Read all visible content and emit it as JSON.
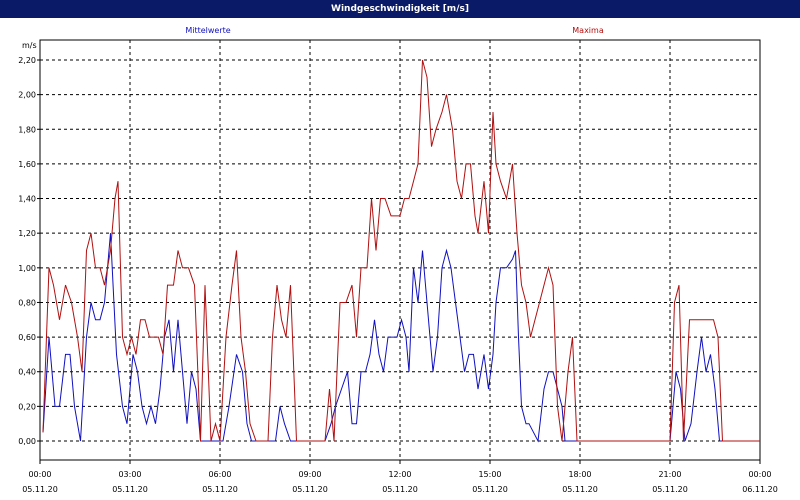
{
  "window_title": "Windgeschwindigkeit [m/s]",
  "colors": {
    "titlebar": "#0a1a66",
    "avg": "#1010c0",
    "max": "#b01010",
    "grid": "#000000"
  },
  "chart_data": {
    "type": "line",
    "title": "Windgeschwindigkeit [m/s]",
    "ylabel": "m/s",
    "ylim": [
      0,
      2.3
    ],
    "xlim_hours": [
      0,
      24
    ],
    "grid": true,
    "y_ticks": [
      "0,00",
      "0,20",
      "0,40",
      "0,60",
      "0,80",
      "1,00",
      "1,20",
      "1,40",
      "1,60",
      "1,80",
      "2,00",
      "2,20"
    ],
    "x_ticks": [
      {
        "time": "00:00",
        "date": "05.11.20"
      },
      {
        "time": "03:00",
        "date": "05.11.20"
      },
      {
        "time": "06:00",
        "date": "05.11.20"
      },
      {
        "time": "09:00",
        "date": "05.11.20"
      },
      {
        "time": "12:00",
        "date": "05.11.20"
      },
      {
        "time": "15:00",
        "date": "05.11.20"
      },
      {
        "time": "18:00",
        "date": "05.11.20"
      },
      {
        "time": "21:00",
        "date": "05.11.20"
      },
      {
        "time": "00:00",
        "date": "06.11.20"
      }
    ],
    "series": [
      {
        "name": "Mittelwerte",
        "color": "#1010c0",
        "points": [
          [
            0.1,
            0.05
          ],
          [
            0.3,
            0.6
          ],
          [
            0.5,
            0.2
          ],
          [
            0.65,
            0.2
          ],
          [
            0.85,
            0.5
          ],
          [
            1.0,
            0.5
          ],
          [
            1.15,
            0.2
          ],
          [
            1.35,
            0.0
          ],
          [
            1.55,
            0.6
          ],
          [
            1.7,
            0.8
          ],
          [
            1.85,
            0.7
          ],
          [
            2.0,
            0.7
          ],
          [
            2.15,
            0.8
          ],
          [
            2.35,
            1.2
          ],
          [
            2.55,
            0.5
          ],
          [
            2.75,
            0.2
          ],
          [
            2.9,
            0.1
          ],
          [
            3.1,
            0.5
          ],
          [
            3.25,
            0.4
          ],
          [
            3.4,
            0.2
          ],
          [
            3.55,
            0.1
          ],
          [
            3.7,
            0.2
          ],
          [
            3.85,
            0.1
          ],
          [
            4.0,
            0.3
          ],
          [
            4.15,
            0.6
          ],
          [
            4.3,
            0.7
          ],
          [
            4.45,
            0.4
          ],
          [
            4.6,
            0.7
          ],
          [
            4.75,
            0.4
          ],
          [
            4.9,
            0.1
          ],
          [
            5.05,
            0.4
          ],
          [
            5.2,
            0.3
          ],
          [
            5.35,
            0.0
          ],
          [
            5.6,
            0.0
          ],
          [
            5.9,
            0.0
          ],
          [
            6.1,
            0.0
          ],
          [
            6.3,
            0.2
          ],
          [
            6.55,
            0.5
          ],
          [
            6.75,
            0.4
          ],
          [
            6.9,
            0.1
          ],
          [
            7.05,
            0.0
          ],
          [
            7.3,
            0.0
          ],
          [
            7.5,
            0.0
          ],
          [
            7.7,
            0.0
          ],
          [
            7.85,
            0.0
          ],
          [
            8.0,
            0.2
          ],
          [
            8.15,
            0.1
          ],
          [
            8.35,
            0.0
          ],
          [
            8.6,
            0.0
          ],
          [
            8.9,
            0.0
          ],
          [
            9.1,
            0.0
          ],
          [
            9.3,
            0.0
          ],
          [
            9.5,
            0.0
          ],
          [
            9.7,
            0.1
          ],
          [
            9.85,
            0.2
          ],
          [
            10.05,
            0.3
          ],
          [
            10.25,
            0.4
          ],
          [
            10.4,
            0.1
          ],
          [
            10.55,
            0.1
          ],
          [
            10.7,
            0.4
          ],
          [
            10.85,
            0.4
          ],
          [
            11.0,
            0.5
          ],
          [
            11.15,
            0.7
          ],
          [
            11.3,
            0.5
          ],
          [
            11.45,
            0.4
          ],
          [
            11.6,
            0.6
          ],
          [
            11.75,
            0.6
          ],
          [
            11.9,
            0.6
          ],
          [
            12.05,
            0.7
          ],
          [
            12.2,
            0.6
          ],
          [
            12.3,
            0.4
          ],
          [
            12.45,
            1.0
          ],
          [
            12.6,
            0.8
          ],
          [
            12.75,
            1.1
          ],
          [
            12.9,
            0.8
          ],
          [
            13.1,
            0.4
          ],
          [
            13.25,
            0.6
          ],
          [
            13.4,
            1.0
          ],
          [
            13.55,
            1.1
          ],
          [
            13.7,
            1.0
          ],
          [
            13.85,
            0.8
          ],
          [
            14.0,
            0.6
          ],
          [
            14.15,
            0.4
          ],
          [
            14.3,
            0.5
          ],
          [
            14.45,
            0.5
          ],
          [
            14.6,
            0.3
          ],
          [
            14.8,
            0.5
          ],
          [
            14.95,
            0.3
          ],
          [
            15.1,
            0.5
          ],
          [
            15.2,
            0.8
          ],
          [
            15.35,
            1.0
          ],
          [
            15.55,
            1.0
          ],
          [
            15.75,
            1.05
          ],
          [
            15.85,
            1.1
          ],
          [
            15.95,
            0.6
          ],
          [
            16.05,
            0.2
          ],
          [
            16.2,
            0.1
          ],
          [
            16.3,
            0.1
          ],
          [
            16.45,
            0.05
          ],
          [
            16.6,
            0.0
          ],
          [
            16.8,
            0.3
          ],
          [
            16.95,
            0.4
          ],
          [
            17.1,
            0.4
          ],
          [
            17.25,
            0.3
          ],
          [
            17.4,
            0.2
          ],
          [
            17.5,
            0.0
          ],
          [
            17.8,
            0.0
          ],
          [
            18.0,
            0.0
          ],
          [
            20.0,
            0.0
          ],
          [
            21.0,
            0.0
          ],
          [
            21.2,
            0.4
          ],
          [
            21.35,
            0.3
          ],
          [
            21.5,
            0.0
          ],
          [
            21.7,
            0.1
          ],
          [
            21.9,
            0.4
          ],
          [
            22.05,
            0.6
          ],
          [
            22.2,
            0.4
          ],
          [
            22.35,
            0.5
          ],
          [
            22.5,
            0.3
          ],
          [
            22.65,
            0.0
          ],
          [
            22.9,
            0.0
          ],
          [
            24.0,
            0.0
          ]
        ]
      },
      {
        "name": "Maxima",
        "color": "#b01010",
        "points": [
          [
            0.1,
            0.05
          ],
          [
            0.3,
            1.0
          ],
          [
            0.45,
            0.9
          ],
          [
            0.65,
            0.7
          ],
          [
            0.85,
            0.9
          ],
          [
            1.05,
            0.8
          ],
          [
            1.25,
            0.6
          ],
          [
            1.4,
            0.4
          ],
          [
            1.55,
            1.1
          ],
          [
            1.7,
            1.2
          ],
          [
            1.85,
            1.0
          ],
          [
            2.0,
            1.0
          ],
          [
            2.15,
            0.9
          ],
          [
            2.35,
            1.1
          ],
          [
            2.5,
            1.4
          ],
          [
            2.6,
            1.5
          ],
          [
            2.75,
            0.6
          ],
          [
            2.9,
            0.5
          ],
          [
            3.05,
            0.6
          ],
          [
            3.2,
            0.5
          ],
          [
            3.35,
            0.7
          ],
          [
            3.5,
            0.7
          ],
          [
            3.65,
            0.6
          ],
          [
            3.8,
            0.6
          ],
          [
            3.95,
            0.6
          ],
          [
            4.1,
            0.5
          ],
          [
            4.25,
            0.9
          ],
          [
            4.45,
            0.9
          ],
          [
            4.6,
            1.1
          ],
          [
            4.75,
            1.0
          ],
          [
            4.95,
            1.0
          ],
          [
            5.15,
            0.9
          ],
          [
            5.35,
            0.0
          ],
          [
            5.5,
            0.9
          ],
          [
            5.7,
            0.0
          ],
          [
            5.85,
            0.1
          ],
          [
            6.0,
            0.0
          ],
          [
            6.2,
            0.6
          ],
          [
            6.4,
            0.9
          ],
          [
            6.55,
            1.1
          ],
          [
            6.7,
            0.6
          ],
          [
            6.85,
            0.4
          ],
          [
            7.0,
            0.1
          ],
          [
            7.2,
            0.0
          ],
          [
            7.5,
            0.0
          ],
          [
            7.6,
            0.0
          ],
          [
            7.75,
            0.6
          ],
          [
            7.9,
            0.9
          ],
          [
            8.05,
            0.7
          ],
          [
            8.2,
            0.6
          ],
          [
            8.35,
            0.9
          ],
          [
            8.55,
            0.0
          ],
          [
            8.8,
            0.0
          ],
          [
            9.1,
            0.0
          ],
          [
            9.35,
            0.0
          ],
          [
            9.5,
            0.0
          ],
          [
            9.65,
            0.3
          ],
          [
            9.8,
            0.0
          ],
          [
            10.0,
            0.8
          ],
          [
            10.2,
            0.8
          ],
          [
            10.4,
            0.9
          ],
          [
            10.55,
            0.6
          ],
          [
            10.7,
            1.0
          ],
          [
            10.9,
            1.0
          ],
          [
            11.05,
            1.4
          ],
          [
            11.2,
            1.1
          ],
          [
            11.35,
            1.4
          ],
          [
            11.5,
            1.4
          ],
          [
            11.7,
            1.3
          ],
          [
            11.85,
            1.3
          ],
          [
            12.0,
            1.3
          ],
          [
            12.15,
            1.4
          ],
          [
            12.3,
            1.4
          ],
          [
            12.45,
            1.5
          ],
          [
            12.6,
            1.6
          ],
          [
            12.75,
            2.2
          ],
          [
            12.9,
            2.1
          ],
          [
            13.05,
            1.7
          ],
          [
            13.2,
            1.8
          ],
          [
            13.4,
            1.9
          ],
          [
            13.55,
            2.0
          ],
          [
            13.75,
            1.8
          ],
          [
            13.9,
            1.5
          ],
          [
            14.05,
            1.4
          ],
          [
            14.2,
            1.6
          ],
          [
            14.35,
            1.6
          ],
          [
            14.5,
            1.3
          ],
          [
            14.6,
            1.2
          ],
          [
            14.8,
            1.5
          ],
          [
            14.95,
            1.2
          ],
          [
            15.1,
            1.9
          ],
          [
            15.2,
            1.6
          ],
          [
            15.35,
            1.5
          ],
          [
            15.55,
            1.4
          ],
          [
            15.75,
            1.6
          ],
          [
            15.9,
            1.2
          ],
          [
            16.05,
            0.9
          ],
          [
            16.2,
            0.8
          ],
          [
            16.35,
            0.6
          ],
          [
            16.5,
            0.7
          ],
          [
            16.65,
            0.8
          ],
          [
            16.8,
            0.9
          ],
          [
            16.95,
            1.0
          ],
          [
            17.1,
            0.9
          ],
          [
            17.25,
            0.2
          ],
          [
            17.4,
            0.0
          ],
          [
            17.6,
            0.4
          ],
          [
            17.75,
            0.6
          ],
          [
            17.9,
            0.0
          ],
          [
            18.0,
            0.0
          ],
          [
            20.0,
            0.0
          ],
          [
            21.0,
            0.0
          ],
          [
            21.15,
            0.8
          ],
          [
            21.3,
            0.9
          ],
          [
            21.45,
            0.0
          ],
          [
            21.65,
            0.7
          ],
          [
            21.85,
            0.7
          ],
          [
            22.05,
            0.7
          ],
          [
            22.25,
            0.7
          ],
          [
            22.45,
            0.7
          ],
          [
            22.6,
            0.6
          ],
          [
            22.75,
            0.0
          ],
          [
            22.9,
            0.0
          ],
          [
            24.0,
            0.0
          ]
        ]
      }
    ]
  }
}
